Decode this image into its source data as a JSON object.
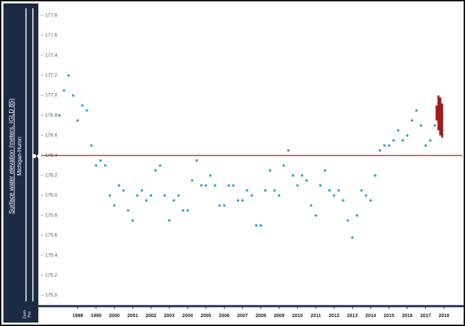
{
  "chart_data": {
    "type": "scatter",
    "ylabel": "Surface water elevation (meters, IGLD 85)",
    "lake": "Michigan-Huron",
    "controls": [
      "Zoom",
      "Pan"
    ],
    "x": [
      1997.0,
      1997.25,
      1997.5,
      1997.75,
      1998.0,
      1998.25,
      1998.5,
      1998.75,
      1999.0,
      1999.25,
      1999.5,
      1999.75,
      2000.0,
      2000.25,
      2000.5,
      2000.75,
      2001.0,
      2001.25,
      2001.5,
      2001.75,
      2002.0,
      2002.25,
      2002.5,
      2002.75,
      2003.0,
      2003.25,
      2003.5,
      2003.75,
      2004.0,
      2004.25,
      2004.5,
      2004.75,
      2005.0,
      2005.25,
      2005.5,
      2005.75,
      2006.0,
      2006.25,
      2006.5,
      2006.75,
      2007.0,
      2007.25,
      2007.5,
      2007.75,
      2008.0,
      2008.25,
      2008.5,
      2008.75,
      2009.0,
      2009.25,
      2009.5,
      2009.75,
      2010.0,
      2010.25,
      2010.5,
      2010.75,
      2011.0,
      2011.25,
      2011.5,
      2011.75,
      2012.0,
      2012.25,
      2012.5,
      2012.75,
      2013.0,
      2013.25,
      2013.5,
      2013.75,
      2014.0,
      2014.25,
      2014.5,
      2014.75,
      2015.0,
      2015.25,
      2015.5,
      2015.75,
      2016.0,
      2016.25,
      2016.5,
      2016.75,
      2017.0,
      2017.25,
      2017.5
    ],
    "values": [
      176.8,
      177.05,
      177.2,
      177.0,
      176.75,
      176.9,
      176.85,
      176.5,
      176.3,
      176.35,
      176.3,
      176.0,
      175.9,
      176.1,
      176.05,
      175.85,
      175.75,
      176.0,
      176.05,
      175.95,
      176.0,
      176.25,
      176.3,
      176.0,
      175.75,
      175.95,
      176.0,
      175.85,
      175.85,
      176.15,
      176.35,
      176.1,
      176.1,
      176.2,
      176.1,
      175.9,
      175.9,
      176.1,
      176.1,
      175.95,
      175.95,
      176.05,
      176.0,
      175.7,
      175.7,
      176.05,
      176.25,
      176.05,
      176.0,
      176.3,
      176.45,
      176.2,
      176.1,
      176.2,
      176.15,
      175.9,
      175.8,
      176.1,
      176.25,
      176.05,
      176.0,
      176.05,
      175.95,
      175.75,
      175.58,
      175.8,
      176.05,
      176.0,
      175.95,
      176.2,
      176.45,
      176.5,
      176.5,
      176.55,
      176.65,
      176.55,
      176.6,
      176.75,
      176.85,
      176.7,
      176.5,
      176.55,
      176.7
    ],
    "color": "#2aa3da",
    "forecast": {
      "x": [
        2017.6,
        2017.7,
        2017.8,
        2017.9
      ],
      "low": [
        176.75,
        176.65,
        176.6,
        176.58
      ],
      "high": [
        176.9,
        177.0,
        176.98,
        176.92
      ],
      "color": "#a11d1d"
    },
    "reference_line": {
      "value": 176.4,
      "color": "#d42a2a"
    },
    "xlim": [
      1996,
      2019
    ],
    "xticks": [
      1998,
      1999,
      2000,
      2001,
      2002,
      2003,
      2004,
      2005,
      2006,
      2007,
      2008,
      2009,
      2010,
      2011,
      2012,
      2013,
      2014,
      2015,
      2016,
      2017,
      2018
    ],
    "ylim": [
      174.9,
      177.9
    ],
    "yticks": [
      {
        "value": 177.8,
        "label": "177.8"
      },
      {
        "value": 177.6,
        "label": "177.6"
      },
      {
        "value": 177.4,
        "label": "177.4"
      },
      {
        "value": 177.2,
        "label": "177.2"
      },
      {
        "value": 177.0,
        "label": "177.0"
      },
      {
        "value": 176.8,
        "label": "176.8"
      },
      {
        "value": 176.6,
        "label": "176.6"
      },
      {
        "value": 176.4,
        "label": "176.4"
      },
      {
        "value": 176.2,
        "label": "176.2"
      },
      {
        "value": 176.0,
        "label": "176.0"
      },
      {
        "value": 175.8,
        "label": "175.8"
      },
      {
        "value": 175.6,
        "label": "175.6"
      },
      {
        "value": 175.4,
        "label": "175.4"
      },
      {
        "value": 175.2,
        "label": "175.2"
      },
      {
        "value": 175.0,
        "label": "175.0"
      }
    ]
  }
}
